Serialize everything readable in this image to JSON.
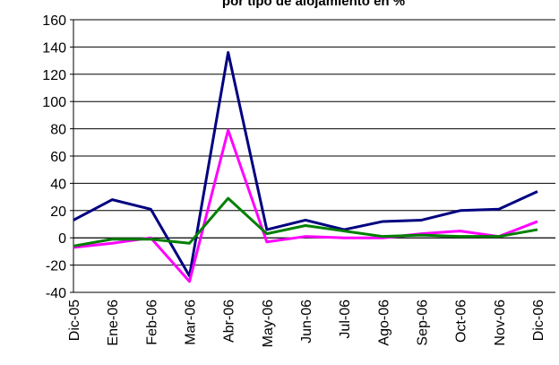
{
  "chart_data": {
    "type": "line",
    "title": "por tipo de alojamiento en %",
    "categories": [
      "Dic-05",
      "Ene-06",
      "Feb-06",
      "Mar-06",
      "Abr-06",
      "May-06",
      "Jun-06",
      "Jul-06",
      "Ago-06",
      "Sep-06",
      "Oct-06",
      "Nov-06",
      "Dic-06"
    ],
    "series": [
      {
        "color": "#000080",
        "values": [
          13,
          28,
          21,
          -28,
          136,
          6,
          13,
          6,
          12,
          13,
          20,
          21,
          34
        ]
      },
      {
        "color": "#ff00ff",
        "values": [
          -7,
          -4,
          0,
          -32,
          79,
          -3,
          1,
          0,
          0,
          3,
          5,
          1,
          12
        ]
      },
      {
        "color": "#008000",
        "values": [
          -6,
          -1,
          -1,
          -4,
          29,
          3,
          9,
          5,
          1,
          2,
          1,
          1,
          6
        ]
      }
    ],
    "ylim": [
      -40,
      160
    ],
    "yticks": [
      -40,
      -20,
      0,
      20,
      40,
      60,
      80,
      100,
      120,
      140,
      160
    ],
    "grid": true
  }
}
